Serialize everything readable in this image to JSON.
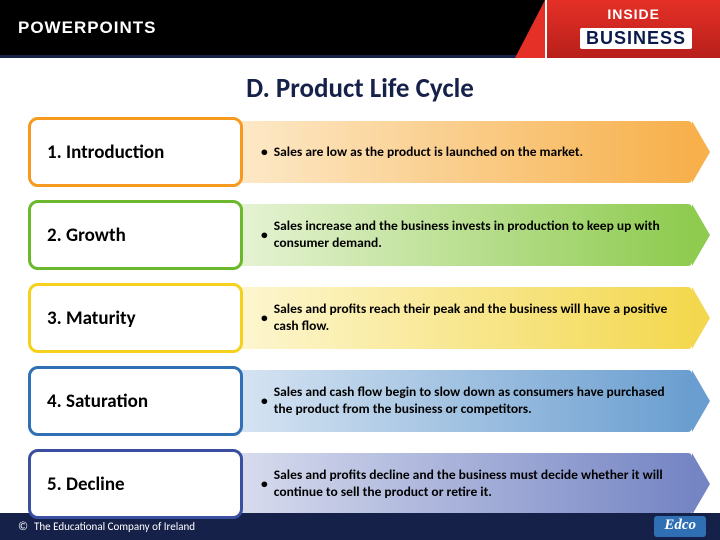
{
  "header": {
    "powerpoints_label": "POWERPOINTS",
    "logo_top": "INSIDE",
    "logo_bottom": "BUSINESS"
  },
  "title": "D. Product Life Cycle",
  "phases": [
    {
      "name": "1. Introduction",
      "desc": "Sales are low as the product is launched on the market.",
      "border_color": "#f59a1e",
      "grad_from": "#fde9c8",
      "grad_to": "#f7b04b"
    },
    {
      "name": "2. Growth",
      "desc": "Sales increase and the business invests in production to keep up with consumer demand.",
      "border_color": "#6bb82c",
      "grad_from": "#e6f3d4",
      "grad_to": "#8ecb4f"
    },
    {
      "name": "3. Maturity",
      "desc": "Sales and profits reach their peak and the business will have a positive cash flow.",
      "border_color": "#f5d11e",
      "grad_from": "#fdf6d0",
      "grad_to": "#f3d84f"
    },
    {
      "name": "4. Saturation",
      "desc": "Sales and cash flow begin to slow down as consumers have purchased the product from the business or competitors.",
      "border_color": "#2f6fb3",
      "grad_from": "#d6e4f2",
      "grad_to": "#6a9ed0"
    },
    {
      "name": "5. Decline",
      "desc": "Sales and profits decline and the business must decide whether it will continue to sell the product or retire it.",
      "border_color": "#3a4fa0",
      "grad_from": "#d8dcee",
      "grad_to": "#7585c4"
    }
  ],
  "footer": {
    "copyright": "The Educational Company of Ireland",
    "edco": "Edco"
  },
  "style": {
    "title_color": "#16214a",
    "title_fontsize": 27,
    "phase_fontsize": 19,
    "desc_fontsize": 13.5
  }
}
